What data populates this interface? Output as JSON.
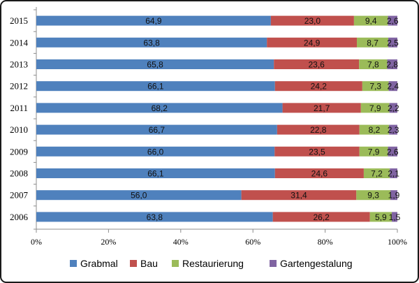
{
  "chart_data": {
    "type": "bar",
    "orientation": "horizontal",
    "stacked": "percent",
    "categories": [
      "2015",
      "2014",
      "2013",
      "2012",
      "2011",
      "2010",
      "2009",
      "2008",
      "2007",
      "2006"
    ],
    "series": [
      {
        "name": "Grabmal",
        "color": "#4f81bd",
        "values": [
          64.9,
          63.8,
          65.8,
          66.1,
          68.2,
          66.7,
          66.0,
          66.1,
          56.0,
          63.8
        ],
        "labels": [
          "64,9",
          "63,8",
          "65,8",
          "66,1",
          "68,2",
          "66,7",
          "66,0",
          "66,1",
          "56,0",
          "63,8"
        ]
      },
      {
        "name": "Bau",
        "color": "#c0504d",
        "values": [
          23.0,
          24.9,
          23.6,
          24.2,
          21.7,
          22.8,
          23.5,
          24.6,
          31.4,
          26.2
        ],
        "labels": [
          "23,0",
          "24,9",
          "23,6",
          "24,2",
          "21,7",
          "22,8",
          "23,5",
          "24,6",
          "31,4",
          "26,2"
        ]
      },
      {
        "name": "Restaurierung",
        "color": "#9bbb59",
        "values": [
          9.4,
          8.7,
          7.8,
          7.3,
          7.9,
          8.2,
          7.9,
          7.2,
          9.3,
          5.9
        ],
        "labels": [
          "9,4",
          "8,7",
          "7,8",
          "7,3",
          "7,9",
          "8,2",
          "7,9",
          "7,2",
          "9,3",
          "5,9"
        ]
      },
      {
        "name": "Gartengestalung",
        "color": "#8064a2",
        "values": [
          2.6,
          2.5,
          2.8,
          2.4,
          2.2,
          2.3,
          2.6,
          2.1,
          1.9,
          1.5
        ],
        "labels": [
          "2,6",
          "2,5",
          "2,8",
          "2,4",
          "2,2",
          "2,3",
          "2,6",
          "2,1",
          "1,9",
          "1,5"
        ]
      }
    ],
    "xaxis": {
      "ticks": [
        "0%",
        "20%",
        "40%",
        "60%",
        "80%",
        "100%"
      ],
      "range": [
        0,
        100
      ]
    },
    "legend": "bottom",
    "grid": false
  }
}
